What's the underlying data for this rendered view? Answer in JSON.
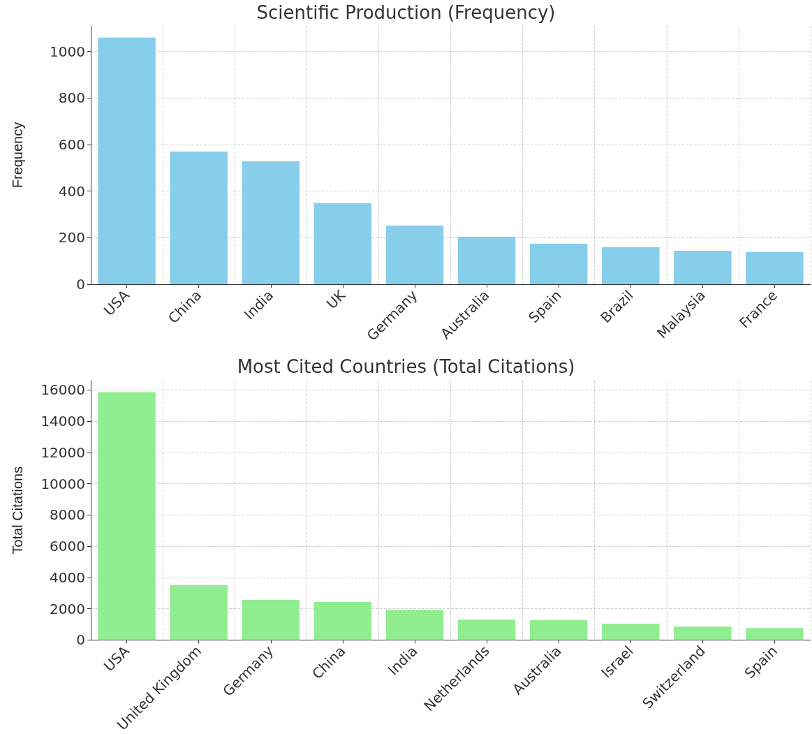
{
  "chart_data": [
    {
      "type": "bar",
      "title": "Scientific Production (Frequency)",
      "ylabel": "Frequency",
      "categories": [
        "USA",
        "China",
        "India",
        "UK",
        "Germany",
        "Australia",
        "Spain",
        "Brazil",
        "Malaysia",
        "France"
      ],
      "values": [
        1060,
        570,
        528,
        348,
        252,
        204,
        174,
        159,
        144,
        138
      ],
      "color": "#87ceeb",
      "ylim": [
        0,
        1110
      ],
      "yticks": [
        0,
        200,
        400,
        600,
        800,
        1000
      ],
      "grid": true
    },
    {
      "type": "bar",
      "title": "Most Cited Countries (Total Citations)",
      "ylabel": "Total Citations",
      "categories": [
        "USA",
        "United Kingdom",
        "Germany",
        "China",
        "India",
        "Netherlands",
        "Australia",
        "Israel",
        "Switzerland",
        "Spain"
      ],
      "values": [
        15860,
        3510,
        2560,
        2430,
        1930,
        1300,
        1260,
        1030,
        850,
        760
      ],
      "color": "#90ee90",
      "ylim": [
        0,
        16600
      ],
      "yticks": [
        0,
        2000,
        4000,
        6000,
        8000,
        10000,
        12000,
        14000,
        16000
      ],
      "grid": true
    }
  ]
}
